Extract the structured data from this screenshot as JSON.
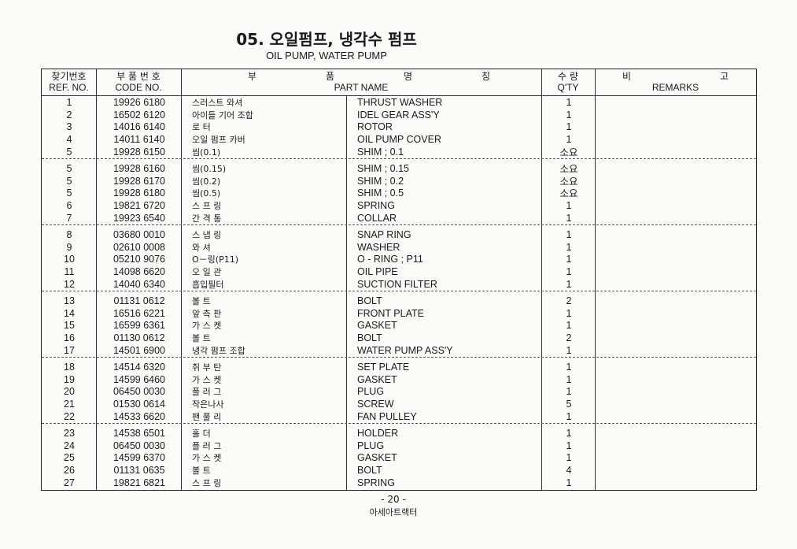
{
  "title": "05. 오일펌프, 냉각수 펌프",
  "subtitle": "OIL PUMP, WATER PUMP",
  "headers": {
    "ref_ko": "찾기번호",
    "ref_en": "REF. NO.",
    "code_ko": "부 품 번 호",
    "code_en": "CODE NO.",
    "name_ko": [
      "부",
      "품",
      "명",
      "칭"
    ],
    "name_en": "PART NAME",
    "qty_ko": "수  량",
    "qty_en": "Q'TY",
    "remarks_ko": [
      "비",
      "고"
    ],
    "remarks_en": "REMARKS"
  },
  "groups": [
    [
      {
        "ref": "1",
        "code": "19926 6180",
        "name_ko": "스러스트 와셔",
        "name_en": "THRUST  WASHER",
        "qty": "1"
      },
      {
        "ref": "2",
        "code": "16502 6120",
        "name_ko": "아이들 기어 조합",
        "name_en": "IDEL  GEAR  ASS'Y",
        "qty": "1"
      },
      {
        "ref": "3",
        "code": "14016 6140",
        "name_ko": "로      터",
        "name_en": "ROTOR",
        "qty": "1"
      },
      {
        "ref": "4",
        "code": "14011 6140",
        "name_ko": "오일 펌프 카버",
        "name_en": "OIL  PUMP  COVER",
        "qty": "1"
      },
      {
        "ref": "5",
        "code": "19928 6150",
        "name_ko": "씸(0.1)",
        "name_en": "SHIM ; 0.1",
        "qty": "소요"
      }
    ],
    [
      {
        "ref": "5",
        "code": "19928 6160",
        "name_ko": "씸(0.15)",
        "name_en": "SHIM ; 0.15",
        "qty": "소요"
      },
      {
        "ref": "5",
        "code": "19928 6170",
        "name_ko": "씸(0.2)",
        "name_en": "SHIM ; 0.2",
        "qty": "소요"
      },
      {
        "ref": "5",
        "code": "19928 6180",
        "name_ko": "씸(0.5)",
        "name_en": "SHIM ; 0.5",
        "qty": "소요"
      },
      {
        "ref": "6",
        "code": "19821 6720",
        "name_ko": "스 프 링",
        "name_en": "SPRING",
        "qty": "1"
      },
      {
        "ref": "7",
        "code": "19923 6540",
        "name_ko": "간 격 통",
        "name_en": "COLLAR",
        "qty": "1"
      }
    ],
    [
      {
        "ref": "8",
        "code": "03680 0010",
        "name_ko": "스 냅 링",
        "name_en": "SNAP  RING",
        "qty": "1"
      },
      {
        "ref": "9",
        "code": "02610 0008",
        "name_ko": "와      셔",
        "name_en": "WASHER",
        "qty": "1"
      },
      {
        "ref": "10",
        "code": "05210 9076",
        "name_ko": "O－링(P11)",
        "name_en": "O - RING ; P11",
        "qty": "1"
      },
      {
        "ref": "11",
        "code": "14098 6620",
        "name_ko": "오 일 관",
        "name_en": "OIL  PIPE",
        "qty": "1"
      },
      {
        "ref": "12",
        "code": "14040 6340",
        "name_ko": "흡입필터",
        "name_en": "SUCTION  FILTER",
        "qty": "1"
      }
    ],
    [
      {
        "ref": "13",
        "code": "01131 0612",
        "name_ko": "볼      트",
        "name_en": "BOLT",
        "qty": "2"
      },
      {
        "ref": "14",
        "code": "16516 6221",
        "name_ko": "앞 측 판",
        "name_en": "FRONT  PLATE",
        "qty": "1"
      },
      {
        "ref": "15",
        "code": "16599 6361",
        "name_ko": "가 스 켓",
        "name_en": "GASKET",
        "qty": "1"
      },
      {
        "ref": "16",
        "code": "01130 0612",
        "name_ko": "볼      트",
        "name_en": "BOLT",
        "qty": "2"
      },
      {
        "ref": "17",
        "code": "14501 6900",
        "name_ko": "냉각 펌프 조합",
        "name_en": "WATER  PUMP  ASS'Y",
        "qty": "1"
      }
    ],
    [
      {
        "ref": "18",
        "code": "14514 6320",
        "name_ko": "취 부 탄",
        "name_en": "SET  PLATE",
        "qty": "1"
      },
      {
        "ref": "19",
        "code": "14599 6460",
        "name_ko": "가 스 켓",
        "name_en": "GASKET",
        "qty": "1"
      },
      {
        "ref": "20",
        "code": "06450 0030",
        "name_ko": "플 러 그",
        "name_en": "PLUG",
        "qty": "1"
      },
      {
        "ref": "21",
        "code": "01530 0614",
        "name_ko": "작은나사",
        "name_en": "SCREW",
        "qty": "5"
      },
      {
        "ref": "22",
        "code": "14533 6620",
        "name_ko": "팬 풀 리",
        "name_en": "FAN  PULLEY",
        "qty": "1"
      }
    ],
    [
      {
        "ref": "23",
        "code": "14538 6501",
        "name_ko": "홀      더",
        "name_en": "HOLDER",
        "qty": "1"
      },
      {
        "ref": "24",
        "code": "06450 0030",
        "name_ko": "플 러 그",
        "name_en": "PLUG",
        "qty": "1"
      },
      {
        "ref": "25",
        "code": "14599 6370",
        "name_ko": "가 스 켓",
        "name_en": "GASKET",
        "qty": "1"
      },
      {
        "ref": "26",
        "code": "01131 0635",
        "name_ko": "볼      트",
        "name_en": "BOLT",
        "qty": "4"
      },
      {
        "ref": "27",
        "code": "19821 6821",
        "name_ko": "스 프 링",
        "name_en": "SPRING",
        "qty": "1"
      }
    ]
  ],
  "footer": {
    "page": "- 20 -",
    "company": "아세아트랙터"
  }
}
